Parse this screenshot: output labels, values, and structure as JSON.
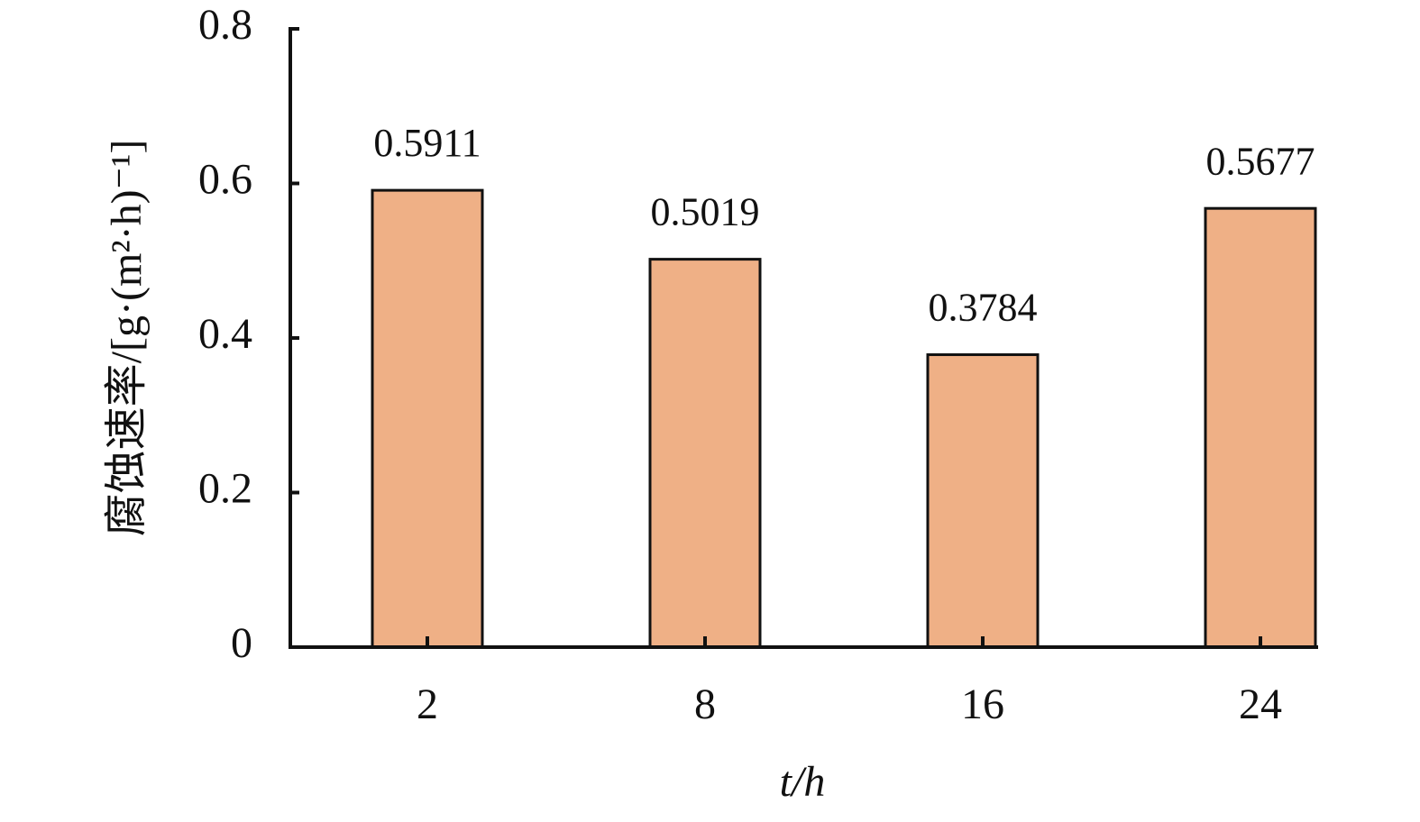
{
  "chart_data": {
    "type": "bar",
    "x_label": "t/h",
    "y_label": "腐蚀速率/[g·(m²·h)⁻¹]",
    "categories": [
      "2",
      "8",
      "16",
      "24"
    ],
    "values": [
      0.5911,
      0.5019,
      0.3784,
      0.5677
    ],
    "color": "#efb086",
    "ylim": [
      0,
      0.8
    ],
    "yticks": [
      0,
      0.2,
      0.4,
      0.6,
      0.8
    ],
    "grid": false
  }
}
